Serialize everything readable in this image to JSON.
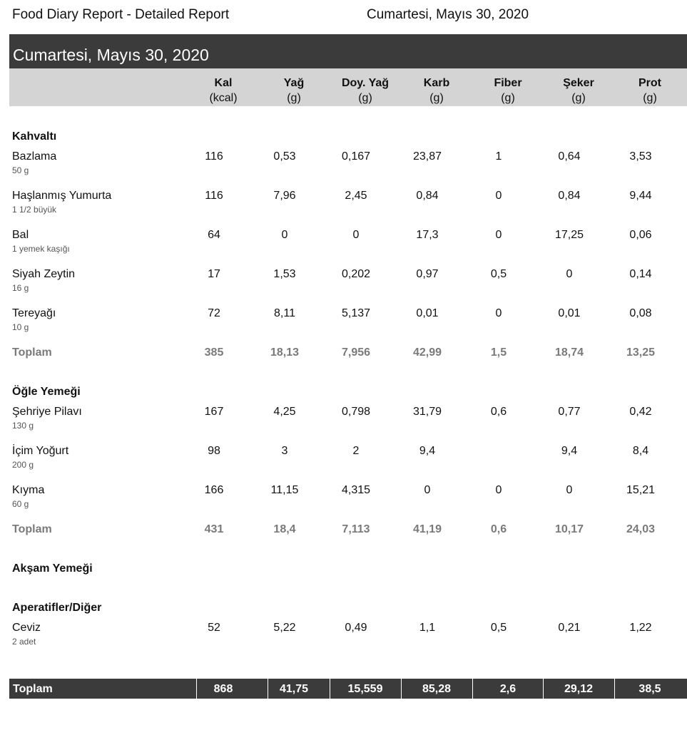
{
  "header": {
    "title": "Food Diary Report - Detailed Report",
    "date": "Cumartesi, Mayıs 30, 2020"
  },
  "day": {
    "title": "Cumartesi, Mayıs 30, 2020"
  },
  "columns": [
    {
      "name": "Kal",
      "unit": "(kcal)"
    },
    {
      "name": "Yağ",
      "unit": "(g)"
    },
    {
      "name": "Doy. Yağ",
      "unit": "(g)"
    },
    {
      "name": "Karb",
      "unit": "(g)"
    },
    {
      "name": "Fiber",
      "unit": "(g)"
    },
    {
      "name": "Şeker",
      "unit": "(g)"
    },
    {
      "name": "Prot",
      "unit": "(g)"
    }
  ],
  "meals": [
    {
      "title": "Kahvaltı",
      "foods": [
        {
          "name": "Bazlama",
          "portion": "50 g",
          "values": [
            "116",
            "0,53",
            "0,167",
            "23,87",
            "1",
            "0,64",
            "3,53"
          ]
        },
        {
          "name": "Haşlanmış Yumurta",
          "portion": "1 1/2 büyük",
          "values": [
            "116",
            "7,96",
            "2,45",
            "0,84",
            "0",
            "0,84",
            "9,44"
          ]
        },
        {
          "name": "Bal",
          "portion": "1 yemek kaşığı",
          "values": [
            "64",
            "0",
            "0",
            "17,3",
            "0",
            "17,25",
            "0,06"
          ]
        },
        {
          "name": "Siyah Zeytin",
          "portion": "16 g",
          "values": [
            "17",
            "1,53",
            "0,202",
            "0,97",
            "0,5",
            "0",
            "0,14"
          ]
        },
        {
          "name": "Tereyağı",
          "portion": "10 g",
          "values": [
            "72",
            "8,11",
            "5,137",
            "0,01",
            "0",
            "0,01",
            "0,08"
          ]
        }
      ],
      "total_label": "Toplam",
      "totals": [
        "385",
        "18,13",
        "7,956",
        "42,99",
        "1,5",
        "18,74",
        "13,25"
      ]
    },
    {
      "title": "Öğle Yemeği",
      "foods": [
        {
          "name": "Şehriye Pilavı",
          "portion": "130 g",
          "values": [
            "167",
            "4,25",
            "0,798",
            "31,79",
            "0,6",
            "0,77",
            "0,42"
          ]
        },
        {
          "name": "İçim Yoğurt",
          "portion": "200 g",
          "values": [
            "98",
            "3",
            "2",
            "9,4",
            "",
            "9,4",
            "8,4"
          ]
        },
        {
          "name": "Kıyma",
          "portion": "60 g",
          "values": [
            "166",
            "11,15",
            "4,315",
            "0",
            "0",
            "0",
            "15,21"
          ]
        }
      ],
      "total_label": "Toplam",
      "totals": [
        "431",
        "18,4",
        "7,113",
        "41,19",
        "0,6",
        "10,17",
        "24,03"
      ]
    },
    {
      "title": "Akşam Yemeği",
      "foods": []
    },
    {
      "title": "Aperatifler/Diğer",
      "foods": [
        {
          "name": "Ceviz",
          "portion": "2 adet",
          "values": [
            "52",
            "5,22",
            "0,49",
            "1,1",
            "0,5",
            "0,21",
            "1,22"
          ]
        }
      ]
    }
  ],
  "grand_total": {
    "label": "Toplam",
    "values": [
      "868",
      "41,75",
      "15,559",
      "85,28",
      "2,6",
      "29,12",
      "38,5"
    ]
  }
}
